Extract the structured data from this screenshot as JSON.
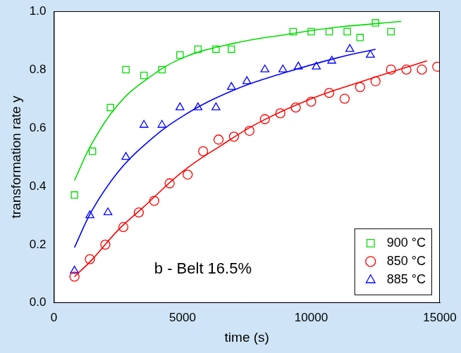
{
  "chart_data": {
    "type": "scatter",
    "x_label": "time (s)",
    "y_label": "transformation rate y",
    "annotations": [
      "b - Belt 16.5%"
    ],
    "xlim": [
      0,
      15000
    ],
    "xticks": [
      0,
      5000,
      10000,
      15000
    ],
    "ylim": [
      0,
      1
    ],
    "yticks": [
      {
        "value": 0,
        "label": "0.0"
      },
      0.2,
      0.4,
      0.6,
      0.8,
      {
        "value": 1,
        "label": "1.0"
      }
    ],
    "grid": false,
    "legend": "lower right",
    "series": [
      {
        "name": "900 °C",
        "color": "#00dd00",
        "marker": "square",
        "x": [
          800,
          1500,
          2200,
          2800,
          3500,
          4200,
          4900,
          5600,
          6300,
          6900,
          9300,
          10000,
          10700,
          11400,
          11900,
          12500,
          13100
        ],
        "values": [
          0.37,
          0.52,
          0.67,
          0.8,
          0.78,
          0.8,
          0.85,
          0.87,
          0.87,
          0.87,
          0.93,
          0.93,
          0.93,
          0.93,
          0.91,
          0.96,
          0.93
        ]
      },
      {
        "name": "850 °C",
        "color": "#ff0000",
        "marker": "circle",
        "x": [
          800,
          1400,
          2000,
          2700,
          3300,
          3900,
          4500,
          5200,
          5800,
          6400,
          7000,
          7600,
          8200,
          8800,
          9400,
          10000,
          10700,
          11300,
          11900,
          12500,
          13100,
          13700,
          14300,
          14900
        ],
        "values": [
          0.09,
          0.15,
          0.2,
          0.26,
          0.31,
          0.35,
          0.41,
          0.44,
          0.52,
          0.56,
          0.57,
          0.59,
          0.63,
          0.65,
          0.67,
          0.69,
          0.72,
          0.7,
          0.74,
          0.76,
          0.8,
          0.8,
          0.8,
          0.81
        ]
      },
      {
        "name": "885 °C",
        "color": "#0000ff",
        "marker": "triangle",
        "x": [
          800,
          1400,
          2100,
          2800,
          3500,
          4200,
          4900,
          5600,
          6300,
          6900,
          7500,
          8200,
          8900,
          9500,
          10200,
          10800,
          11500,
          12300
        ],
        "values": [
          0.11,
          0.3,
          0.31,
          0.5,
          0.61,
          0.61,
          0.67,
          0.67,
          0.67,
          0.74,
          0.76,
          0.8,
          0.8,
          0.81,
          0.81,
          0.83,
          0.87,
          0.85
        ]
      },
      {
        "type": "line",
        "color": "#00dd00",
        "line_style": "solid",
        "x": [
          800,
          1500,
          2500,
          3500,
          5000,
          7000,
          9000,
          11000,
          13500
        ],
        "values": [
          0.42,
          0.55,
          0.68,
          0.76,
          0.84,
          0.89,
          0.92,
          0.945,
          0.965
        ]
      },
      {
        "type": "line",
        "color": "#ff0000",
        "line_style": "solid",
        "x": [
          800,
          1500,
          2500,
          3500,
          5000,
          6500,
          8000,
          10000,
          12000,
          14500
        ],
        "values": [
          0.09,
          0.15,
          0.25,
          0.33,
          0.45,
          0.54,
          0.62,
          0.7,
          0.76,
          0.83
        ]
      },
      {
        "type": "line",
        "color": "#0000ff",
        "line_style": "solid",
        "x": [
          800,
          1500,
          2500,
          3500,
          5000,
          7000,
          9000,
          11000,
          12500
        ],
        "values": [
          0.19,
          0.32,
          0.45,
          0.54,
          0.64,
          0.73,
          0.79,
          0.84,
          0.87
        ]
      }
    ]
  }
}
